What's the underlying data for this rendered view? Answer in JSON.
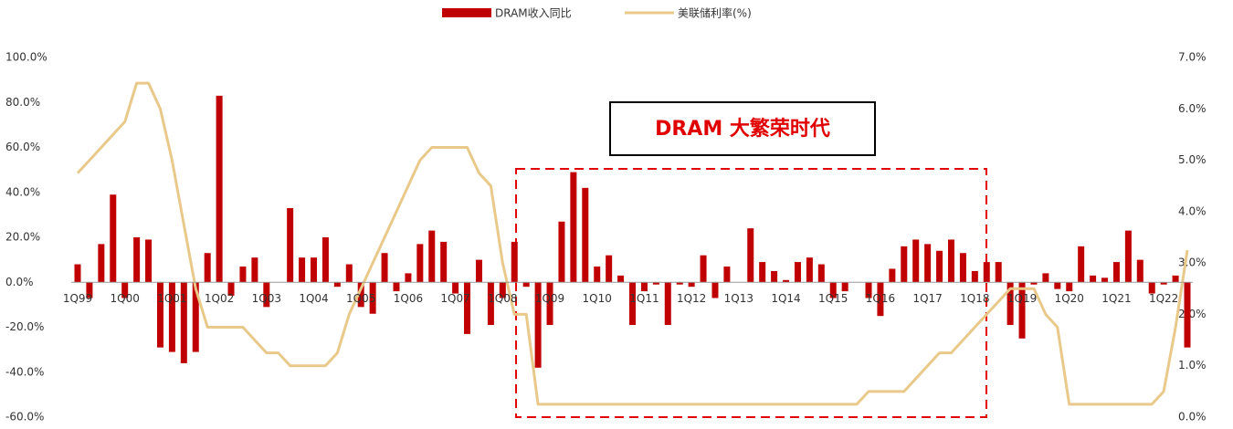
{
  "chart_data": {
    "type": "bar_line",
    "categories": [
      "1Q99",
      null,
      null,
      null,
      "1Q00",
      null,
      null,
      null,
      "1Q01",
      null,
      null,
      null,
      "1Q02",
      null,
      null,
      null,
      "1Q03",
      null,
      null,
      null,
      "1Q04",
      null,
      null,
      null,
      "1Q05",
      null,
      null,
      null,
      "1Q06",
      null,
      null,
      null,
      "1Q07",
      null,
      null,
      null,
      "1Q08",
      null,
      null,
      null,
      "1Q09",
      null,
      null,
      null,
      "1Q10",
      null,
      null,
      null,
      "1Q11",
      null,
      null,
      null,
      "1Q12",
      null,
      null,
      null,
      "1Q13",
      null,
      null,
      null,
      "1Q14",
      null,
      null,
      null,
      "1Q15",
      null,
      null,
      null,
      "1Q16",
      null,
      null,
      null,
      "1Q17",
      null,
      null,
      null,
      "1Q18",
      null,
      null,
      null,
      "1Q19",
      null,
      null,
      null,
      "1Q20",
      null,
      null,
      null,
      "1Q21",
      null,
      null,
      null,
      "1Q22",
      null,
      null
    ],
    "series": [
      {
        "name": "DRAM收入同比",
        "type": "bar",
        "color": "#c00000",
        "values": [
          8,
          -7,
          17,
          39,
          -7,
          20,
          19,
          -29,
          -31,
          -36,
          -31,
          13,
          83,
          -6,
          7,
          11,
          -11,
          0,
          33,
          11,
          11,
          20,
          -2,
          8,
          -11,
          -14,
          13,
          -4,
          4,
          17,
          23,
          18,
          -5,
          -23,
          10,
          -19,
          -7,
          18,
          -2,
          -38,
          -19,
          27,
          49,
          42,
          7,
          12,
          3,
          -19,
          -4,
          -1,
          -19,
          -1,
          -2,
          12,
          -7,
          7,
          0,
          24,
          9,
          5,
          1,
          9,
          11,
          8,
          -7,
          -4,
          0,
          -7,
          -15,
          6,
          16,
          19,
          17,
          14,
          19,
          13,
          5,
          9,
          9,
          -19,
          -25,
          -1,
          4,
          -3,
          -4,
          16,
          3,
          2,
          9,
          23,
          10,
          -5,
          -1,
          3,
          -29
        ]
      },
      {
        "name": "美联储利率(%)",
        "type": "line",
        "axis": "y2",
        "color": "#e9c98a",
        "values": [
          4.75,
          5.0,
          5.25,
          5.5,
          5.75,
          6.5,
          6.5,
          6.0,
          5.0,
          3.75,
          2.5,
          1.75,
          1.75,
          1.75,
          1.75,
          1.5,
          1.25,
          1.25,
          1.0,
          1.0,
          1.0,
          1.0,
          1.25,
          2.0,
          2.5,
          3.0,
          3.5,
          4.0,
          4.5,
          5.0,
          5.25,
          5.25,
          5.25,
          5.25,
          4.75,
          4.5,
          3.0,
          2.0,
          2.0,
          0.25,
          0.25,
          0.25,
          0.25,
          0.25,
          0.25,
          0.25,
          0.25,
          0.25,
          0.25,
          0.25,
          0.25,
          0.25,
          0.25,
          0.25,
          0.25,
          0.25,
          0.25,
          0.25,
          0.25,
          0.25,
          0.25,
          0.25,
          0.25,
          0.25,
          0.25,
          0.25,
          0.25,
          0.5,
          0.5,
          0.5,
          0.5,
          0.75,
          1.0,
          1.25,
          1.25,
          1.5,
          1.75,
          2.0,
          2.25,
          2.5,
          2.5,
          2.5,
          2.0,
          1.75,
          0.25,
          0.25,
          0.25,
          0.25,
          0.25,
          0.25,
          0.25,
          0.25,
          0.5,
          1.75,
          3.25
        ]
      }
    ],
    "ylim": [
      -60,
      100
    ],
    "yticks": [
      {
        "value": -60,
        "label": "-60.0%"
      },
      {
        "value": -40,
        "label": "-40.0%"
      },
      {
        "value": -20,
        "label": "-20.0%"
      },
      {
        "value": 0,
        "label": "0.0%"
      },
      {
        "value": 20,
        "label": "20.0%"
      },
      {
        "value": 40,
        "label": "40.0%"
      },
      {
        "value": 60,
        "label": "60.0%"
      },
      {
        "value": 80,
        "label": "80.0%"
      },
      {
        "value": 100,
        "label": "100.0%"
      }
    ],
    "y2lim": [
      0,
      7
    ],
    "y2ticks": [
      {
        "value": 0,
        "label": "0.0%"
      },
      {
        "value": 1,
        "label": "1.0%"
      },
      {
        "value": 2,
        "label": "2.0%"
      },
      {
        "value": 3,
        "label": "3.0%"
      },
      {
        "value": 4,
        "label": "4.0%"
      },
      {
        "value": 5,
        "label": "5.0%"
      },
      {
        "value": 6,
        "label": "6.0%"
      },
      {
        "value": 7,
        "label": "7.0%"
      }
    ],
    "annotation": "DRAM 大繁荣时代"
  }
}
